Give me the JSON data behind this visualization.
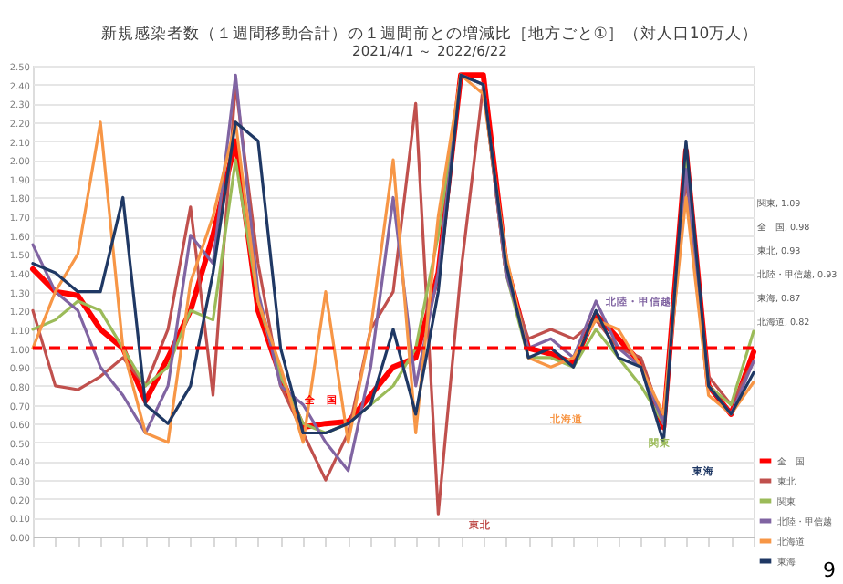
{
  "chart_data": {
    "type": "line",
    "title": "新規感染者数（１週間移動合計）の１週間前との増減比［地方ごと①］（対人口10万人）",
    "subtitle": "2021/4/1 ～ 2022/6/22",
    "categories": [
      null,
      null,
      null,
      null,
      null,
      null,
      null,
      null,
      null,
      null,
      null,
      null,
      null,
      null,
      null,
      null,
      null,
      null,
      null,
      null,
      null,
      null,
      null,
      null,
      null,
      null,
      null,
      null,
      null,
      null,
      null,
      null,
      null
    ],
    "series": [
      {
        "name": "全　国",
        "color": "#ff0000",
        "values": [
          1.42,
          1.3,
          1.28,
          1.1,
          1.0,
          0.72,
          0.95,
          1.2,
          1.6,
          2.1,
          1.2,
          0.85,
          0.58,
          0.6,
          0.61,
          0.75,
          0.9,
          0.95,
          1.4,
          2.45,
          2.45,
          1.45,
          1.0,
          0.97,
          0.92,
          1.18,
          1.05,
          0.92,
          0.58,
          2.05,
          0.8,
          0.65,
          0.98
        ]
      },
      {
        "name": "東北",
        "color": "#c0504d",
        "values": [
          1.2,
          0.8,
          0.78,
          0.85,
          0.95,
          0.8,
          1.1,
          1.75,
          0.75,
          2.4,
          1.45,
          0.8,
          0.55,
          0.3,
          0.55,
          1.1,
          1.3,
          2.3,
          0.12,
          1.4,
          2.4,
          1.4,
          1.05,
          1.1,
          1.05,
          1.15,
          1.0,
          0.95,
          0.6,
          1.9,
          0.85,
          0.7,
          0.93
        ]
      },
      {
        "name": "関東",
        "color": "#9bbb59",
        "values": [
          1.1,
          1.15,
          1.25,
          1.2,
          1.0,
          0.8,
          0.9,
          1.2,
          1.15,
          2.0,
          1.25,
          0.85,
          0.6,
          0.55,
          0.6,
          0.7,
          0.8,
          1.0,
          1.6,
          2.45,
          2.4,
          1.4,
          0.95,
          0.95,
          0.9,
          1.1,
          0.95,
          0.8,
          0.6,
          2.0,
          0.8,
          0.7,
          1.09
        ]
      },
      {
        "name": "北陸・甲信越",
        "color": "#8064a2",
        "values": [
          1.55,
          1.3,
          1.2,
          0.9,
          0.75,
          0.55,
          0.8,
          1.6,
          1.45,
          2.45,
          1.3,
          0.8,
          0.7,
          0.5,
          0.35,
          0.9,
          1.8,
          0.8,
          1.4,
          2.45,
          2.4,
          1.4,
          1.0,
          1.05,
          0.95,
          1.25,
          1.0,
          0.9,
          0.6,
          1.95,
          0.8,
          0.65,
          0.93
        ]
      },
      {
        "name": "北海道",
        "color": "#f79646",
        "values": [
          1.0,
          1.3,
          1.5,
          2.2,
          1.0,
          0.55,
          0.5,
          1.35,
          1.7,
          2.2,
          1.25,
          0.9,
          0.5,
          1.3,
          0.5,
          1.1,
          2.0,
          0.55,
          1.7,
          2.45,
          2.35,
          1.5,
          0.95,
          0.9,
          0.95,
          1.15,
          1.1,
          0.9,
          0.65,
          1.8,
          0.75,
          0.65,
          0.82
        ]
      },
      {
        "name": "東海",
        "color": "#1f3864",
        "values": [
          1.45,
          1.4,
          1.3,
          1.3,
          1.8,
          0.7,
          0.6,
          0.8,
          1.4,
          2.2,
          2.1,
          1.0,
          0.55,
          0.55,
          0.6,
          0.7,
          1.1,
          0.65,
          1.3,
          2.45,
          2.4,
          1.45,
          0.95,
          1.0,
          0.9,
          1.2,
          0.95,
          0.9,
          0.5,
          2.1,
          0.8,
          0.65,
          0.87
        ]
      }
    ],
    "ylim": [
      0,
      2.5
    ],
    "yticks": [
      {
        "value": 0,
        "label": "0.00"
      },
      {
        "value": 0.1,
        "label": "0.10"
      },
      {
        "value": 0.2,
        "label": "0.20"
      },
      {
        "value": 0.3,
        "label": "0.30"
      },
      {
        "value": 0.4,
        "label": "0.40"
      },
      {
        "value": 0.5,
        "label": "0.50"
      },
      {
        "value": 0.6,
        "label": "0.60"
      },
      {
        "value": 0.7,
        "label": "0.70"
      },
      {
        "value": 0.8,
        "label": "0.80"
      },
      {
        "value": 0.9,
        "label": "0.90"
      },
      {
        "value": 1,
        "label": "1.00"
      },
      {
        "value": 1.1,
        "label": "1.10"
      },
      {
        "value": 1.2,
        "label": "1.20"
      },
      {
        "value": 1.3,
        "label": "1.30"
      },
      {
        "value": 1.4,
        "label": "1.40"
      },
      {
        "value": 1.5,
        "label": "1.50"
      },
      {
        "value": 1.6,
        "label": "1.60"
      },
      {
        "value": 1.7,
        "label": "1.70"
      },
      {
        "value": 1.8,
        "label": "1.80"
      },
      {
        "value": 1.9,
        "label": "1.90"
      },
      {
        "value": 2,
        "label": "2.00"
      },
      {
        "value": 2.1,
        "label": "2.10"
      },
      {
        "value": 2.2,
        "label": "2.20"
      },
      {
        "value": 2.3,
        "label": "2.30"
      },
      {
        "value": 2.4,
        "label": "2.40"
      },
      {
        "value": 2.5,
        "label": "2.50"
      }
    ],
    "tick_labels": "y",
    "grid": "y",
    "legend": "bottom right",
    "line_style": "solid",
    "ref_lines": [
      {
        "axis": "y",
        "value": 1.0,
        "color": "#ff0000",
        "line_style": "dashed"
      }
    ],
    "annotations": [
      "全　国",
      "東北",
      "関東",
      "北陸・甲信越",
      "北海道",
      "東海",
      "関東, 1.09",
      "全　国, 0.98",
      "東北, 0.93",
      "北陸・甲信越, 0.93",
      "東海, 0.87",
      "北海道, 0.82",
      "9"
    ]
  }
}
